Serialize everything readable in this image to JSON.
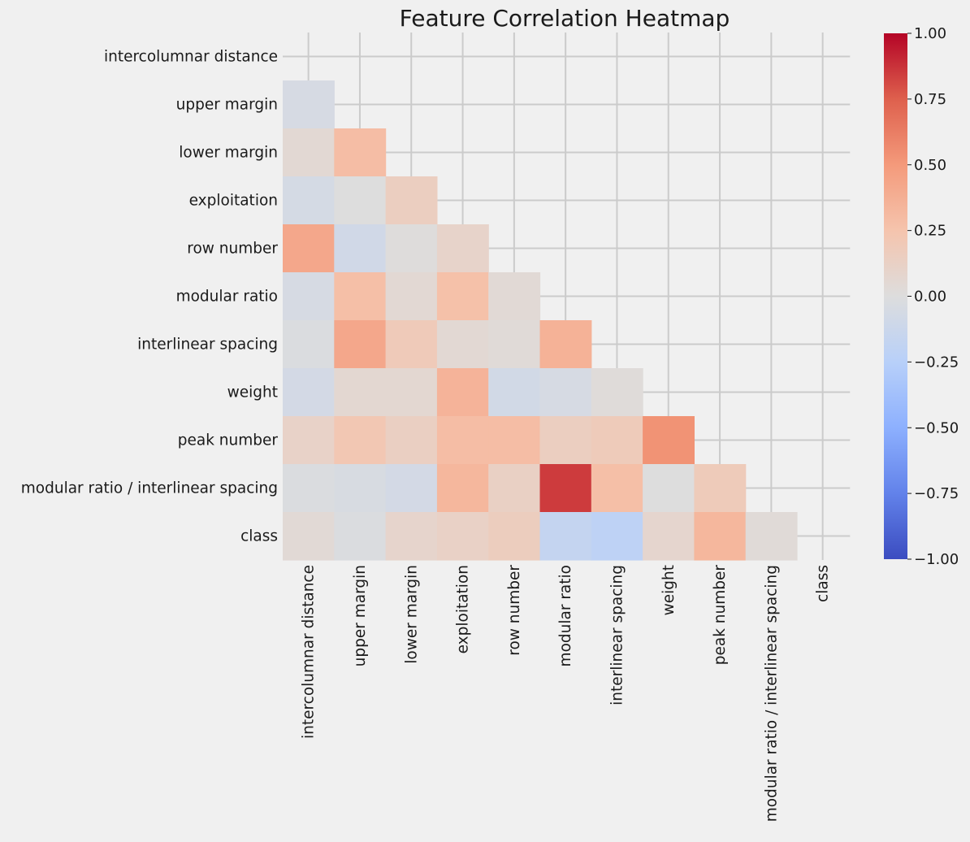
{
  "chart_data": {
    "type": "heatmap",
    "title": "Feature Correlation Heatmap",
    "mask": "upper-triangle-including-diagonal",
    "labels": [
      "intercolumnar distance",
      "upper margin",
      "lower margin",
      "exploitation",
      "row number",
      "modular ratio",
      "interlinear spacing",
      "weight",
      "peak number",
      "modular ratio / interlinear spacing",
      "class"
    ],
    "matrix": [
      [
        null,
        null,
        null,
        null,
        null,
        null,
        null,
        null,
        null,
        null,
        null
      ],
      [
        -0.05,
        null,
        null,
        null,
        null,
        null,
        null,
        null,
        null,
        null,
        null
      ],
      [
        0.05,
        0.29,
        null,
        null,
        null,
        null,
        null,
        null,
        null,
        null,
        null
      ],
      [
        -0.06,
        0.0,
        0.15,
        null,
        null,
        null,
        null,
        null,
        null,
        null,
        null
      ],
      [
        0.42,
        -0.09,
        0.01,
        0.1,
        null,
        null,
        null,
        null,
        null,
        null,
        null
      ],
      [
        -0.05,
        0.28,
        0.05,
        0.27,
        0.04,
        null,
        null,
        null,
        null,
        null,
        null
      ],
      [
        -0.02,
        0.42,
        0.19,
        0.05,
        0.03,
        0.36,
        null,
        null,
        null,
        null,
        null
      ],
      [
        -0.07,
        0.06,
        0.06,
        0.35,
        -0.08,
        -0.05,
        0.02,
        null,
        null,
        null,
        null
      ],
      [
        0.11,
        0.22,
        0.14,
        0.29,
        0.29,
        0.15,
        0.18,
        0.53,
        null,
        null,
        null
      ],
      [
        -0.02,
        -0.04,
        -0.07,
        0.33,
        0.13,
        0.85,
        0.28,
        0.0,
        0.18,
        null,
        null
      ],
      [
        0.04,
        -0.02,
        0.09,
        0.12,
        0.16,
        -0.17,
        -0.21,
        0.08,
        0.33,
        0.03,
        null
      ]
    ],
    "colormap": "coolwarm",
    "vmin": -1.0,
    "vmax": 1.0,
    "colorbar_ticks": [
      "1.00",
      "0.75",
      "0.50",
      "0.25",
      "0.00",
      "−0.25",
      "−0.50",
      "−0.75",
      "−1.00"
    ],
    "grid": true
  }
}
